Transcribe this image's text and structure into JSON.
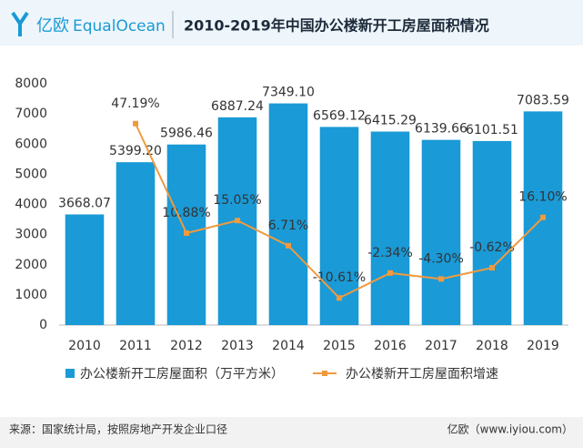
{
  "header": {
    "logo": "亿欧",
    "brand": "EqualOcean"
  },
  "chart_data": {
    "type": "bar-line",
    "title": "2010-2019年中国办公楼新开工房屋面积情况",
    "categories": [
      "2010",
      "2011",
      "2012",
      "2013",
      "2014",
      "2015",
      "2016",
      "2017",
      "2018",
      "2019"
    ],
    "series": [
      {
        "name": "办公楼新开工房屋面积（万平方米）",
        "type": "bar",
        "color": "#1a9ad6",
        "values": [
          3668.07,
          5399.2,
          5986.46,
          6887.24,
          7349.1,
          6569.12,
          6415.29,
          6139.66,
          6101.51,
          7083.59
        ],
        "value_labels": [
          "3668.07",
          "5399.20",
          "5986.46",
          "6887.24",
          "7349.10",
          "6569.12",
          "6415.29",
          "6139.66",
          "6101.51",
          "7083.59"
        ]
      },
      {
        "name": "办公楼新开工房屋面积增速",
        "type": "line",
        "color": "#f09a3e",
        "axis": "y2",
        "values": [
          null,
          47.19,
          10.88,
          15.05,
          6.71,
          -10.61,
          -2.34,
          -4.3,
          -0.62,
          16.1
        ],
        "value_labels": [
          null,
          "47.19%",
          "10.88%",
          "15.05%",
          "6.71%",
          "-10.61%",
          "-2.34%",
          "-4.30%",
          "-0.62%",
          "16.10%"
        ]
      }
    ],
    "ylim": [
      0,
      8000
    ],
    "yticks": [
      0,
      1000,
      2000,
      3000,
      4000,
      5000,
      6000,
      7000,
      8000
    ],
    "y2lim": [
      -19.6,
      60.4
    ],
    "grid": false,
    "legend": "bottom"
  },
  "footer": {
    "source": "来源：国家统计局，按照房地产开发企业口径",
    "site": "亿欧（www.iyiou.com）"
  }
}
